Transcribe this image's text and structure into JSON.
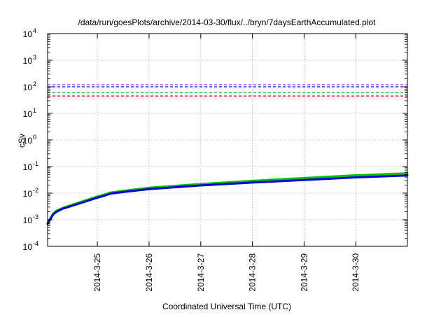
{
  "chart_data": {
    "type": "line",
    "title": "/data/run/goesPlots/archive/2014-03-30/flux/../bryn/7daysEarthAccumulated.plot",
    "xlabel": "Coordinated Universal Time (UTC)",
    "ylabel": "cSv",
    "yscale": "log",
    "xlim": [
      "2014-03-24 00:52",
      "2014-03-30 23:59"
    ],
    "ylim": [
      0.0001,
      10000
    ],
    "grid": true,
    "legend": "none",
    "y_ticks": [
      {
        "value": 0.0001,
        "base": "10",
        "exp": "-4"
      },
      {
        "value": 0.001,
        "base": "10",
        "exp": "-3"
      },
      {
        "value": 0.01,
        "base": "10",
        "exp": "-2"
      },
      {
        "value": 0.1,
        "base": "10",
        "exp": "-1"
      },
      {
        "value": 1,
        "base": "10",
        "exp": "0"
      },
      {
        "value": 10,
        "base": "10",
        "exp": "1"
      },
      {
        "value": 100,
        "base": "10",
        "exp": "2"
      },
      {
        "value": 1000,
        "base": "10",
        "exp": "3"
      },
      {
        "value": 10000,
        "base": "10",
        "exp": "4"
      }
    ],
    "x_ticks": [
      "2014-3-25",
      "2014-3-26",
      "2014-3-27",
      "2014-3-28",
      "2014-3-29",
      "2014-3-30"
    ],
    "thresholds": [
      {
        "value": 120,
        "color": "#9b30ff"
      },
      {
        "value": 100,
        "color": "#0000ff"
      },
      {
        "value": 60,
        "color": "#22cc22"
      },
      {
        "value": 45,
        "color": "#ff0000"
      }
    ],
    "series": [
      {
        "color": "#00c000",
        "points": [
          [
            "2014-03-24 00:52",
            0.00075
          ],
          [
            "2014-03-24 02:00",
            0.0011
          ],
          [
            "2014-03-24 03:30",
            0.0017
          ],
          [
            "2014-03-24 05:00",
            0.0022
          ],
          [
            "2014-03-24 08:00",
            0.0028
          ],
          [
            "2014-03-24 12:00",
            0.0036
          ],
          [
            "2014-03-24 18:00",
            0.0052
          ],
          [
            "2014-03-25 00:00",
            0.0075
          ],
          [
            "2014-03-25 03:00",
            0.0087
          ],
          [
            "2014-03-25 06:00",
            0.0105
          ],
          [
            "2014-03-25 12:00",
            0.0122
          ],
          [
            "2014-03-26 00:00",
            0.016
          ],
          [
            "2014-03-27 00:00",
            0.022
          ],
          [
            "2014-03-28 00:00",
            0.029
          ],
          [
            "2014-03-29 00:00",
            0.037
          ],
          [
            "2014-03-30 00:00",
            0.047
          ],
          [
            "2014-03-30 23:59",
            0.056
          ]
        ]
      },
      {
        "color": "#0000dd",
        "points": [
          [
            "2014-03-24 00:52",
            0.0007
          ],
          [
            "2014-03-24 02:00",
            0.001
          ],
          [
            "2014-03-24 03:30",
            0.0016
          ],
          [
            "2014-03-24 05:00",
            0.002
          ],
          [
            "2014-03-24 08:00",
            0.0026
          ],
          [
            "2014-03-24 12:00",
            0.0033
          ],
          [
            "2014-03-24 18:00",
            0.0047
          ],
          [
            "2014-03-25 00:00",
            0.0068
          ],
          [
            "2014-03-25 03:00",
            0.0079
          ],
          [
            "2014-03-25 06:00",
            0.0095
          ],
          [
            "2014-03-25 12:00",
            0.011
          ],
          [
            "2014-03-26 00:00",
            0.0142
          ],
          [
            "2014-03-27 00:00",
            0.0195
          ],
          [
            "2014-03-28 00:00",
            0.025
          ],
          [
            "2014-03-29 00:00",
            0.031
          ],
          [
            "2014-03-30 00:00",
            0.039
          ],
          [
            "2014-03-30 23:59",
            0.046
          ]
        ]
      }
    ]
  }
}
